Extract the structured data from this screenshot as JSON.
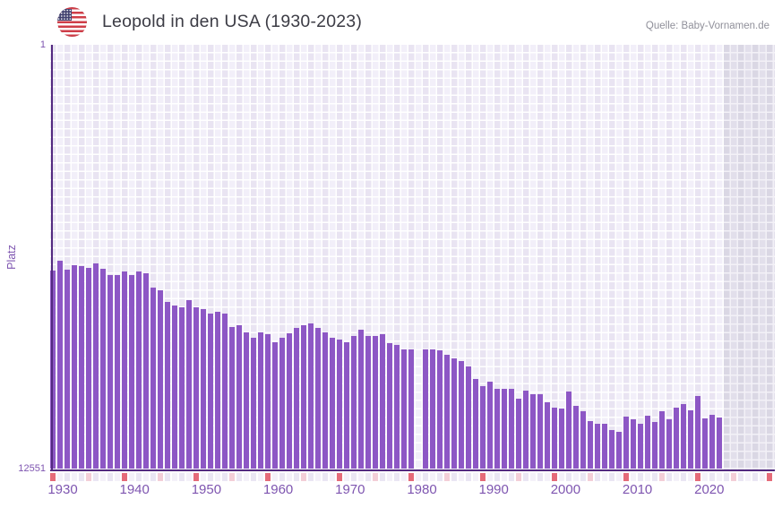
{
  "header": {
    "title": "Leopold in den USA (1930-2023)",
    "source": "Quelle: Baby-Vornamen.de",
    "flag_icon": "us-flag-icon"
  },
  "axes": {
    "y_label": "Platz",
    "y_top_tick": "1",
    "y_bottom_tick": "12551",
    "x_ticks": [
      "1930",
      "1940",
      "1950",
      "1960",
      "1970",
      "1980",
      "1990",
      "2000",
      "2010",
      "2020"
    ]
  },
  "chart_data": {
    "type": "bar",
    "title": "Leopold in den USA (1930-2023)",
    "xlabel": "",
    "ylabel": "Platz",
    "y_axis": {
      "min": 1,
      "max": 12551,
      "inverted": true
    },
    "x_range_years": [
      1930,
      2030
    ],
    "data_years": [
      1930,
      2023
    ],
    "missing_years": [
      1981
    ],
    "future_region_years": [
      2024,
      2030
    ],
    "grid": true,
    "legend": false,
    "series": [
      {
        "name": "Platz",
        "x": [
          1930,
          1931,
          1932,
          1933,
          1934,
          1935,
          1936,
          1937,
          1938,
          1939,
          1940,
          1941,
          1942,
          1943,
          1944,
          1945,
          1946,
          1947,
          1948,
          1949,
          1950,
          1951,
          1952,
          1953,
          1954,
          1955,
          1956,
          1957,
          1958,
          1959,
          1960,
          1961,
          1962,
          1963,
          1964,
          1965,
          1966,
          1967,
          1968,
          1969,
          1970,
          1971,
          1972,
          1973,
          1974,
          1975,
          1976,
          1977,
          1978,
          1979,
          1980,
          1981,
          1982,
          1983,
          1984,
          1985,
          1986,
          1987,
          1988,
          1989,
          1990,
          1991,
          1992,
          1993,
          1994,
          1995,
          1996,
          1997,
          1998,
          1999,
          2000,
          2001,
          2002,
          2003,
          2004,
          2005,
          2006,
          2007,
          2008,
          2009,
          2010,
          2011,
          2012,
          2013,
          2014,
          2015,
          2016,
          2017,
          2018,
          2019,
          2020,
          2021,
          2022,
          2023
        ],
        "values": [
          6680,
          6389,
          6653,
          6521,
          6547,
          6600,
          6468,
          6627,
          6812,
          6812,
          6706,
          6812,
          6706,
          6759,
          7183,
          7263,
          7607,
          7713,
          7766,
          7554,
          7766,
          7819,
          7952,
          7899,
          7952,
          8349,
          8296,
          8508,
          8667,
          8508,
          8561,
          8800,
          8667,
          8535,
          8376,
          8296,
          8243,
          8376,
          8508,
          8667,
          8720,
          8800,
          8614,
          8429,
          8614,
          8614,
          8561,
          8826,
          8879,
          9012,
          9012,
          null,
          9012,
          9012,
          9038,
          9171,
          9277,
          9356,
          9515,
          9886,
          10098,
          9966,
          10178,
          10178,
          10178,
          10469,
          10231,
          10337,
          10337,
          10575,
          10734,
          10761,
          10257,
          10681,
          10840,
          11132,
          11211,
          11211,
          11397,
          11450,
          11000,
          11079,
          11211,
          10973,
          11158,
          10840,
          11079,
          10734,
          10628,
          10814,
          10390,
          11053,
          10947,
          11026
        ]
      }
    ],
    "colors": {
      "bar": "#8d57c5",
      "axis_line": "#532a80",
      "tick_label": "#7e55b0",
      "grid_column_even": "#e9e4f2",
      "grid_column_odd": "#f2eff9",
      "future_column_even": "#dad7e4",
      "future_column_odd": "#e2dfeb",
      "decade_marker": "#e56b79",
      "half_decade_marker": "#f3ced7",
      "year_marker_even": "#eae6f3",
      "year_marker_odd": "#f4f1f9",
      "title_text": "#3c3c45",
      "source_text": "#90909a"
    }
  }
}
